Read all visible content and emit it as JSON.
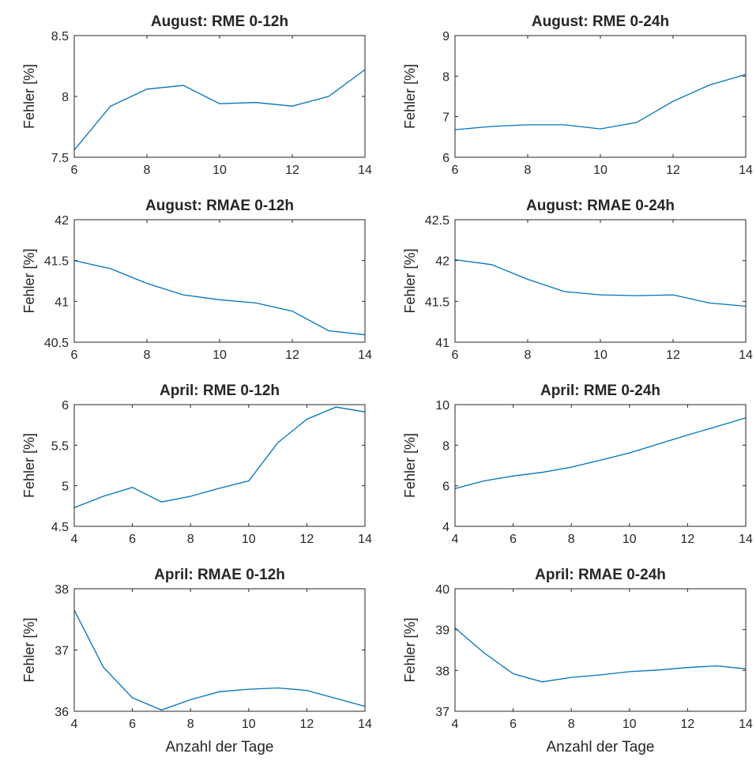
{
  "figure": {
    "line_color": "#0072bd",
    "axis_color": "#262626"
  },
  "chart_data": [
    {
      "type": "line",
      "title": "August: RME 0-12h",
      "ylabel": "Fehler [%]",
      "xlabel": "",
      "xlim": [
        6,
        14
      ],
      "ylim": [
        7.5,
        8.5
      ],
      "xticks": [
        6,
        8,
        10,
        12,
        14
      ],
      "yticks": [
        "7.5",
        "8",
        "8.5"
      ],
      "ytick_values": [
        7.5,
        8,
        8.5
      ],
      "x": [
        6,
        7,
        8,
        9,
        10,
        11,
        12,
        13,
        14
      ],
      "y": [
        7.56,
        7.92,
        8.06,
        8.09,
        7.94,
        7.95,
        7.92,
        8.0,
        8.22
      ]
    },
    {
      "type": "line",
      "title": "August: RME 0-24h",
      "ylabel": "Fehler [%]",
      "xlabel": "",
      "xlim": [
        6,
        14
      ],
      "ylim": [
        6,
        9
      ],
      "xticks": [
        6,
        8,
        10,
        12,
        14
      ],
      "yticks": [
        "6",
        "7",
        "8",
        "9"
      ],
      "ytick_values": [
        6,
        7,
        8,
        9
      ],
      "x": [
        6,
        7,
        8,
        9,
        10,
        11,
        12,
        13,
        14
      ],
      "y": [
        6.68,
        6.76,
        6.8,
        6.8,
        6.7,
        6.86,
        7.38,
        7.78,
        8.04
      ]
    },
    {
      "type": "line",
      "title": "August: RMAE 0-12h",
      "ylabel": "Fehler [%]",
      "xlabel": "",
      "xlim": [
        6,
        14
      ],
      "ylim": [
        40.5,
        42
      ],
      "xticks": [
        6,
        8,
        10,
        12,
        14
      ],
      "yticks": [
        "40.5",
        "41",
        "41.5",
        "42"
      ],
      "ytick_values": [
        40.5,
        41,
        41.5,
        42
      ],
      "x": [
        6,
        7,
        8,
        9,
        10,
        11,
        12,
        13,
        14
      ],
      "y": [
        41.5,
        41.4,
        41.22,
        41.08,
        41.02,
        40.98,
        40.88,
        40.64,
        40.59
      ]
    },
    {
      "type": "line",
      "title": "August: RMAE 0-24h",
      "ylabel": "Fehler [%]",
      "xlabel": "",
      "xlim": [
        6,
        14
      ],
      "ylim": [
        41,
        42.5
      ],
      "xticks": [
        6,
        8,
        10,
        12,
        14
      ],
      "yticks": [
        "41",
        "41.5",
        "42",
        "42.5"
      ],
      "ytick_values": [
        41,
        41.5,
        42,
        42.5
      ],
      "x": [
        6,
        7,
        8,
        9,
        10,
        11,
        12,
        13,
        14
      ],
      "y": [
        42.01,
        41.95,
        41.77,
        41.62,
        41.58,
        41.57,
        41.58,
        41.48,
        41.44
      ]
    },
    {
      "type": "line",
      "title": "April: RME 0-12h",
      "ylabel": "Fehler [%]",
      "xlabel": "",
      "xlim": [
        4,
        14
      ],
      "ylim": [
        4.5,
        6
      ],
      "xticks": [
        4,
        6,
        8,
        10,
        12,
        14
      ],
      "yticks": [
        "4.5",
        "5",
        "5.5",
        "6"
      ],
      "ytick_values": [
        4.5,
        5,
        5.5,
        6
      ],
      "x": [
        4,
        5,
        6,
        7,
        8,
        9,
        10,
        11,
        12,
        13,
        14
      ],
      "y": [
        4.73,
        4.87,
        4.98,
        4.8,
        4.87,
        4.97,
        5.06,
        5.53,
        5.82,
        5.97,
        5.91
      ]
    },
    {
      "type": "line",
      "title": "April: RME 0-24h",
      "ylabel": "Fehler [%]",
      "xlabel": "",
      "xlim": [
        4,
        14
      ],
      "ylim": [
        4,
        10
      ],
      "xticks": [
        4,
        6,
        8,
        10,
        12,
        14
      ],
      "yticks": [
        "4",
        "6",
        "8",
        "10"
      ],
      "ytick_values": [
        4,
        6,
        8,
        10
      ],
      "x": [
        4,
        5,
        6,
        7,
        8,
        9,
        10,
        11,
        12,
        13,
        14
      ],
      "y": [
        5.86,
        6.24,
        6.48,
        6.66,
        6.92,
        7.26,
        7.62,
        8.06,
        8.5,
        8.92,
        9.35
      ]
    },
    {
      "type": "line",
      "title": "April: RMAE 0-12h",
      "ylabel": "Fehler [%]",
      "xlabel": "Anzahl der Tage",
      "xlim": [
        4,
        14
      ],
      "ylim": [
        36,
        38
      ],
      "xticks": [
        4,
        6,
        8,
        10,
        12,
        14
      ],
      "yticks": [
        "36",
        "37",
        "38"
      ],
      "ytick_values": [
        36,
        37,
        38
      ],
      "x": [
        4,
        5,
        6,
        7,
        8,
        9,
        10,
        11,
        12,
        13,
        14
      ],
      "y": [
        37.65,
        36.72,
        36.22,
        36.02,
        36.19,
        36.32,
        36.36,
        36.38,
        36.34,
        36.21,
        36.08
      ]
    },
    {
      "type": "line",
      "title": "April: RMAE 0-24h",
      "ylabel": "Fehler [%]",
      "xlabel": "Anzahl der Tage",
      "xlim": [
        4,
        14
      ],
      "ylim": [
        37,
        40
      ],
      "xticks": [
        4,
        6,
        8,
        10,
        12,
        14
      ],
      "yticks": [
        "37",
        "38",
        "39",
        "40"
      ],
      "ytick_values": [
        37,
        38,
        39,
        40
      ],
      "x": [
        4,
        5,
        6,
        7,
        8,
        9,
        10,
        11,
        12,
        13,
        14
      ],
      "y": [
        39.04,
        38.43,
        37.92,
        37.72,
        37.83,
        37.89,
        37.97,
        38.01,
        38.07,
        38.11,
        38.04
      ]
    }
  ]
}
